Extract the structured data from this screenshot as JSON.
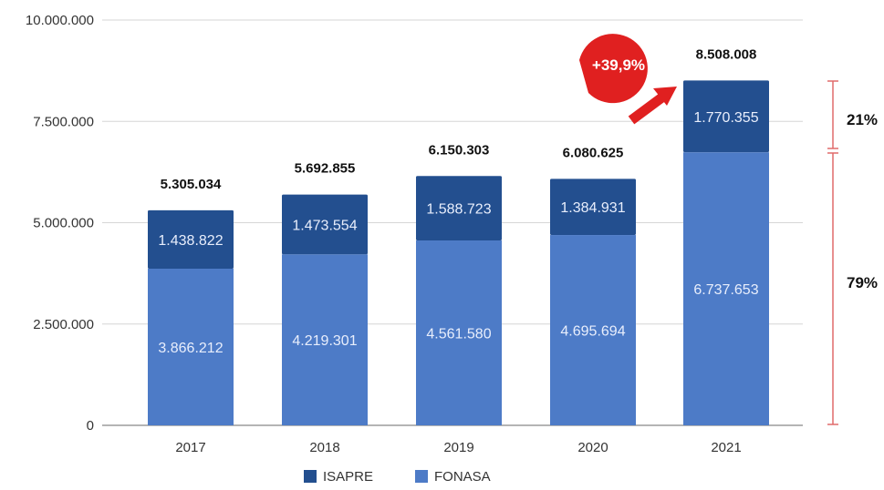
{
  "chart_data": {
    "type": "bar",
    "stacked": true,
    "categories": [
      "2017",
      "2018",
      "2019",
      "2020",
      "2021"
    ],
    "series": [
      {
        "name": "FONASA",
        "values": [
          3866212,
          4219301,
          4561580,
          4695694,
          6737653
        ],
        "labels": [
          "3.866.212",
          "4.219.301",
          "4.561.580",
          "4.695.694",
          "6.737.653"
        ],
        "color": "#4d7bc7"
      },
      {
        "name": "ISAPRE",
        "values": [
          1438822,
          1473554,
          1588723,
          1384931,
          1770355
        ],
        "labels": [
          "1.438.822",
          "1.473.554",
          "1.588.723",
          "1.384.931",
          "1.770.355"
        ],
        "color": "#234f8f"
      }
    ],
    "totals": [
      "5.305.034",
      "5.692.855",
      "6.150.303",
      "6.080.625",
      "8.508.008"
    ],
    "ylim": [
      0,
      10000000
    ],
    "yticks": [
      0,
      2500000,
      5000000,
      7500000,
      10000000
    ],
    "ytick_labels": [
      "0",
      "2.500.000",
      "5.000.000",
      "7.500.000",
      "10.000.000"
    ],
    "grid": true,
    "legend_position": "bottom",
    "legend": [
      "ISAPRE",
      "FONASA"
    ],
    "annotations": {
      "growth_badge": "+39,9%",
      "isapre_share": "21%",
      "fonasa_share": "79%"
    },
    "colors": {
      "accent": "#e02020",
      "grid": "#d6d6d6",
      "axis": "#888888"
    }
  }
}
